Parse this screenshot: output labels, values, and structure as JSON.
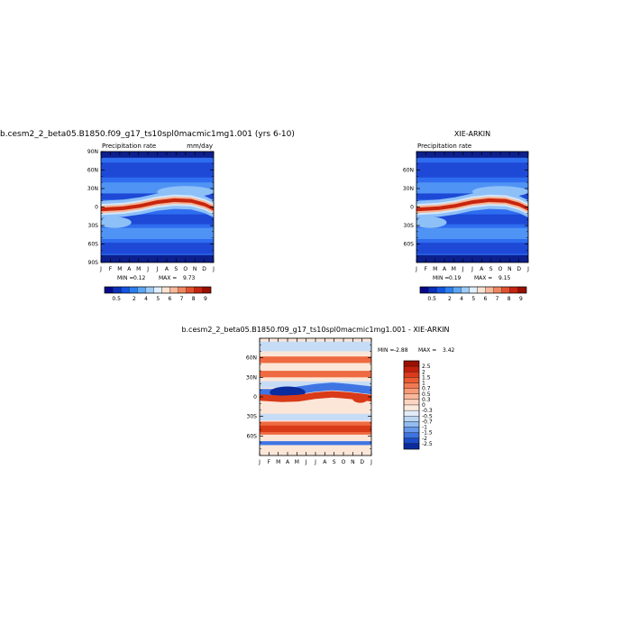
{
  "chart_data": [
    {
      "type": "heatmap",
      "title": "b.cesm2_2_beta05.B1850.f09_g17_ts10spl0macmic1mg1.001 (yrs 6-10)",
      "subtitle_left": "Precipitation rate",
      "subtitle_right": "mm/day",
      "x_categories": [
        "J",
        "F",
        "M",
        "A",
        "M",
        "J",
        "J",
        "A",
        "S",
        "O",
        "N",
        "D",
        "J"
      ],
      "y_ticks": [
        "90N",
        "60N",
        "30N",
        "0",
        "30S",
        "60S",
        "90S"
      ],
      "ylim": [
        -90,
        90
      ],
      "min_label": "MIN =",
      "min_value": "0.12",
      "max_label": "MAX =",
      "max_value": "9.73",
      "colorbar_labels": [
        "0.5",
        "2",
        "4",
        "5",
        "6",
        "7",
        "8",
        "9"
      ],
      "colorbar_colors": [
        "#08088a",
        "#0a2fb8",
        "#1455e0",
        "#2b7ff0",
        "#5aa6f5",
        "#9ccbf7",
        "#e0efff",
        "#fbe3d2",
        "#f6b79a",
        "#ef8660",
        "#e3502f",
        "#c6240f",
        "#9a1000"
      ]
    },
    {
      "type": "heatmap",
      "title": "XIE-ARKIN",
      "subtitle_left": "Precipitation rate",
      "x_categories": [
        "J",
        "F",
        "M",
        "A",
        "M",
        "J",
        "J",
        "A",
        "S",
        "O",
        "N",
        "D",
        "J"
      ],
      "y_ticks": [
        "60N",
        "30N",
        "0",
        "30S",
        "60S"
      ],
      "ylim": [
        -90,
        90
      ],
      "min_label": "MIN =",
      "min_value": "0.19",
      "max_label": "MAX =",
      "max_value": "9.15",
      "colorbar_labels": [
        "0.5",
        "2",
        "4",
        "5",
        "6",
        "7",
        "8",
        "9"
      ],
      "colorbar_colors": [
        "#08088a",
        "#0a2fb8",
        "#1455e0",
        "#2b7ff0",
        "#5aa6f5",
        "#9ccbf7",
        "#e0efff",
        "#fbe3d2",
        "#f6b79a",
        "#ef8660",
        "#e3502f",
        "#c6240f",
        "#9a1000"
      ]
    },
    {
      "type": "heatmap",
      "title": "b.cesm2_2_beta05.B1850.f09_g17_ts10spl0macmic1mg1.001 - XIE-ARKIN",
      "x_categories": [
        "J",
        "F",
        "M",
        "A",
        "M",
        "J",
        "J",
        "A",
        "S",
        "O",
        "N",
        "D",
        "J"
      ],
      "y_ticks": [
        "60N",
        "30N",
        "0",
        "30S",
        "60S"
      ],
      "ylim": [
        -90,
        90
      ],
      "min_label": "MIN =",
      "min_value": "-2.88",
      "max_label": "MAX =",
      "max_value": "3.42",
      "colorbar_labels": [
        "2.5",
        "2",
        "1.5",
        "1",
        "0.7",
        "0.5",
        "0.3",
        "0",
        "-0.3",
        "-0.5",
        "-0.7",
        "-1",
        "-1.5",
        "-2",
        "-2.5"
      ],
      "colorbar_colors": [
        "#9a1000",
        "#c11f0c",
        "#dc3a1c",
        "#ec5a32",
        "#f27a52",
        "#f69a77",
        "#f9b89c",
        "#fcd5c2",
        "#fbe9dc",
        "#e2ecf8",
        "#bcd6f4",
        "#92bcf0",
        "#6798ea",
        "#3f73e0",
        "#1d4cc8",
        "#0a2c9e"
      ]
    }
  ],
  "field_colors": {
    "base": "#2e6cf0",
    "dark": "#0c1f8c",
    "mid": "#1d49d6",
    "light": "#4f93f5",
    "pale": "#8ec0f8",
    "band_pale": "#d2e6fb",
    "band_warm": "#f5b596",
    "band_hot": "#c8250e",
    "diff_base": "#fbe6d8",
    "diff_pos": "#ee6a40",
    "diff_pos_strong": "#d93a18",
    "diff_neg": "#3f75e3",
    "diff_neg_strong": "#0a2c9e",
    "diff_pale_blue": "#c6dcf6"
  }
}
